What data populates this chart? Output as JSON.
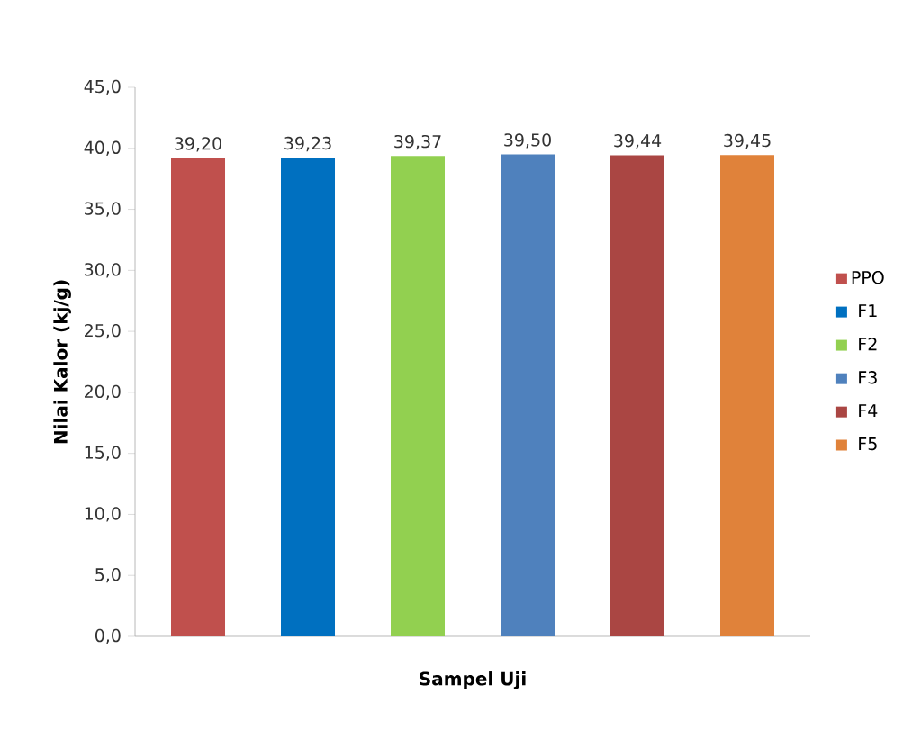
{
  "chart_data": {
    "type": "bar",
    "xlabel": "Sampel Uji",
    "ylabel": "Nilai Kalor (kj/g)",
    "categories": [
      null
    ],
    "series": [
      {
        "name": "PPO",
        "color": "#c0504d",
        "values": [
          39.2
        ],
        "value_labels": [
          "39,20"
        ]
      },
      {
        "name": "F1",
        "color": "#0070c0",
        "values": [
          39.23
        ],
        "value_labels": [
          "39,23"
        ]
      },
      {
        "name": "F2",
        "color": "#92d050",
        "values": [
          39.37
        ],
        "value_labels": [
          "39,37"
        ]
      },
      {
        "name": "F3",
        "color": "#4f81bd",
        "values": [
          39.5
        ],
        "value_labels": [
          "39,50"
        ]
      },
      {
        "name": "F4",
        "color": "#aa4643",
        "values": [
          39.44
        ],
        "value_labels": [
          "39,44"
        ]
      },
      {
        "name": "F5",
        "color": "#e0823a",
        "values": [
          39.45
        ],
        "value_labels": [
          "39,45"
        ]
      }
    ],
    "ylim": [
      0,
      45
    ],
    "yticks": [
      {
        "value": 0,
        "label": "0,0"
      },
      {
        "value": 5,
        "label": "5,0"
      },
      {
        "value": 10,
        "label": "10,0"
      },
      {
        "value": 15,
        "label": "15,0"
      },
      {
        "value": 20,
        "label": "20,0"
      },
      {
        "value": 25,
        "label": "25,0"
      },
      {
        "value": 30,
        "label": "30,0"
      },
      {
        "value": 35,
        "label": "35,0"
      },
      {
        "value": 40,
        "label": "40,0"
      },
      {
        "value": 45,
        "label": "45,0"
      }
    ],
    "legend": "right",
    "grid": false
  }
}
